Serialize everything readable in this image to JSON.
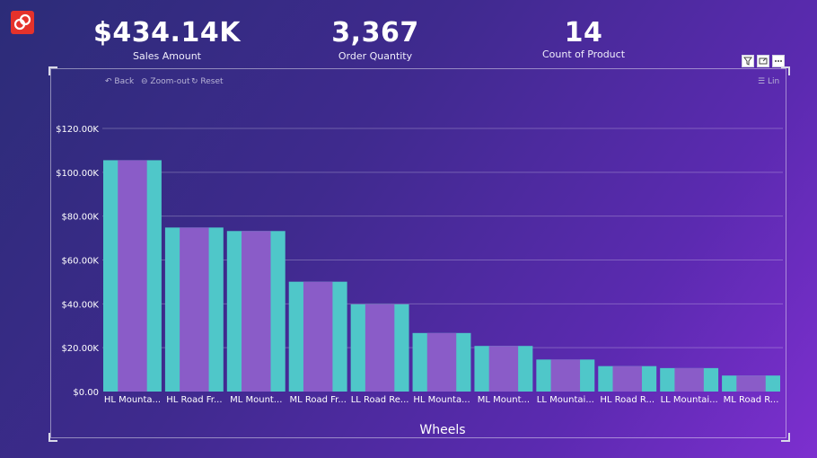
{
  "kpis": [
    {
      "value": "$434.14K",
      "label": "Sales Amount"
    },
    {
      "value": "3,367",
      "label": "Order Quantity"
    },
    {
      "value": "14",
      "label": "Count of Product"
    }
  ],
  "toolbar": {
    "back": "Back",
    "zoom_out": "Zoom-out",
    "reset": "Reset",
    "lin": "Lin"
  },
  "colors": {
    "outer_bar": "#4fc7c9",
    "inner_bar": "#8a5cc8",
    "brand": "#e5322b"
  },
  "icons": {
    "logo": "brand-logo-icon",
    "filter": "filter-icon",
    "focus": "focus-mode-icon",
    "more": "more-options-icon"
  },
  "chart_data": {
    "type": "bar",
    "xlabel": "Wheels",
    "ylabel": "",
    "ylim": [
      0,
      120000
    ],
    "y_ticks": [
      "$0.00",
      "$20.00K",
      "$40.00K",
      "$60.00K",
      "$80.00K",
      "$100.00K",
      "$120.00K"
    ],
    "grid": true,
    "categories": [
      "HL Mounta...",
      "HL Road Fr...",
      "ML Mount...",
      "ML Road Fr...",
      "LL Road Re...",
      "HL Mounta...",
      "ML Mount...",
      "LL Mountai...",
      "HL Road R...",
      "LL Mountai...",
      "ML Road R..."
    ],
    "series": [
      {
        "values": [
          105500,
          74800,
          73200,
          50100,
          39800,
          26700,
          20800,
          14600,
          11600,
          10700,
          7300
        ]
      },
      {
        "values": [
          105500,
          74800,
          73200,
          50100,
          39800,
          26700,
          20800,
          14600,
          11600,
          10700,
          7300
        ]
      }
    ]
  }
}
